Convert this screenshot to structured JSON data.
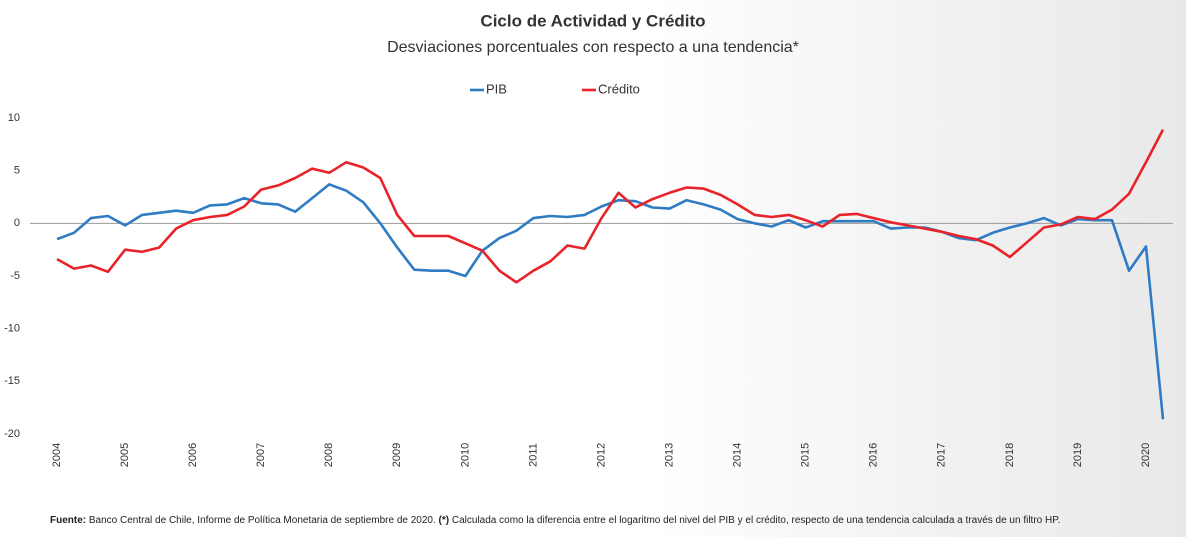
{
  "chart_data": {
    "type": "line",
    "title": "Ciclo de Actividad y Crédito",
    "subtitle": "Desviaciones porcentuales con respecto a una tendencia*",
    "categories": [
      "2004",
      null,
      null,
      null,
      "2005",
      null,
      null,
      null,
      "2006",
      null,
      null,
      null,
      "2007",
      null,
      null,
      null,
      "2008",
      null,
      null,
      null,
      "2009",
      null,
      null,
      null,
      "2010",
      null,
      null,
      null,
      "2011",
      null,
      null,
      null,
      "2012",
      null,
      null,
      null,
      "2013",
      null,
      null,
      null,
      "2014",
      null,
      null,
      null,
      "2015",
      null,
      null,
      null,
      "2016",
      null,
      null,
      null,
      "2017",
      null,
      null,
      null,
      "2018",
      null,
      null,
      null,
      "2019",
      null,
      null,
      null,
      "2020",
      null
    ],
    "series": [
      {
        "name": "PIB",
        "color": "#2f7bc4",
        "values": [
          -1.5,
          -0.9,
          0.5,
          0.7,
          -0.2,
          0.8,
          1.0,
          1.2,
          1.0,
          1.7,
          1.8,
          2.4,
          1.9,
          1.8,
          1.1,
          2.4,
          3.7,
          3.1,
          2.0,
          0.0,
          -2.3,
          -4.4,
          -4.5,
          -4.5,
          -5.0,
          -2.6,
          -1.4,
          -0.7,
          0.5,
          0.7,
          0.6,
          0.8,
          1.6,
          2.2,
          2.1,
          1.5,
          1.4,
          2.2,
          1.8,
          1.3,
          0.4,
          0.0,
          -0.3,
          0.3,
          -0.4,
          0.2,
          0.2,
          0.2,
          0.2,
          -0.5,
          -0.4,
          -0.4,
          -0.8,
          -1.4,
          -1.6,
          -0.9,
          -0.4,
          0.0,
          0.5,
          -0.2,
          0.4,
          0.3,
          0.3,
          -4.5,
          -2.2,
          -18.6
        ]
      },
      {
        "name": "Crédito",
        "color": "#e8242a",
        "values": [
          -3.4,
          -4.3,
          -4.0,
          -4.6,
          -2.5,
          -2.7,
          -2.3,
          -0.5,
          0.3,
          0.6,
          0.8,
          1.6,
          3.2,
          3.6,
          4.3,
          5.2,
          4.8,
          5.8,
          5.3,
          4.3,
          0.8,
          -1.2,
          -1.2,
          -1.2,
          -1.9,
          -2.6,
          -4.5,
          -5.6,
          -4.5,
          -3.6,
          -2.1,
          -2.4,
          0.5,
          2.9,
          1.5,
          2.3,
          2.9,
          3.4,
          3.3,
          2.7,
          1.8,
          0.8,
          0.6,
          0.8,
          0.3,
          -0.3,
          0.8,
          0.9,
          0.5,
          0.1,
          -0.2,
          -0.5,
          -0.8,
          -1.2,
          -1.5,
          -2.1,
          -3.2,
          -1.8,
          -0.4,
          -0.1,
          0.6,
          0.4,
          1.3,
          2.8,
          5.8,
          8.9
        ]
      }
    ],
    "ylim": [
      -20,
      10
    ],
    "yticks": [
      10,
      5,
      0,
      -5,
      -10,
      -15,
      -20
    ],
    "grid": false,
    "legend": "top",
    "source_label": "Fuente:",
    "source": "Banco Central de Chile, Informe de Política Monetaria de septiembre de 2020.",
    "note_label": "(*)",
    "note": "Calculada como la diferencia entre el logaritmo del nivel del PIB y el crédito, respecto de una tendencia calculada a través de un filtro HP."
  }
}
